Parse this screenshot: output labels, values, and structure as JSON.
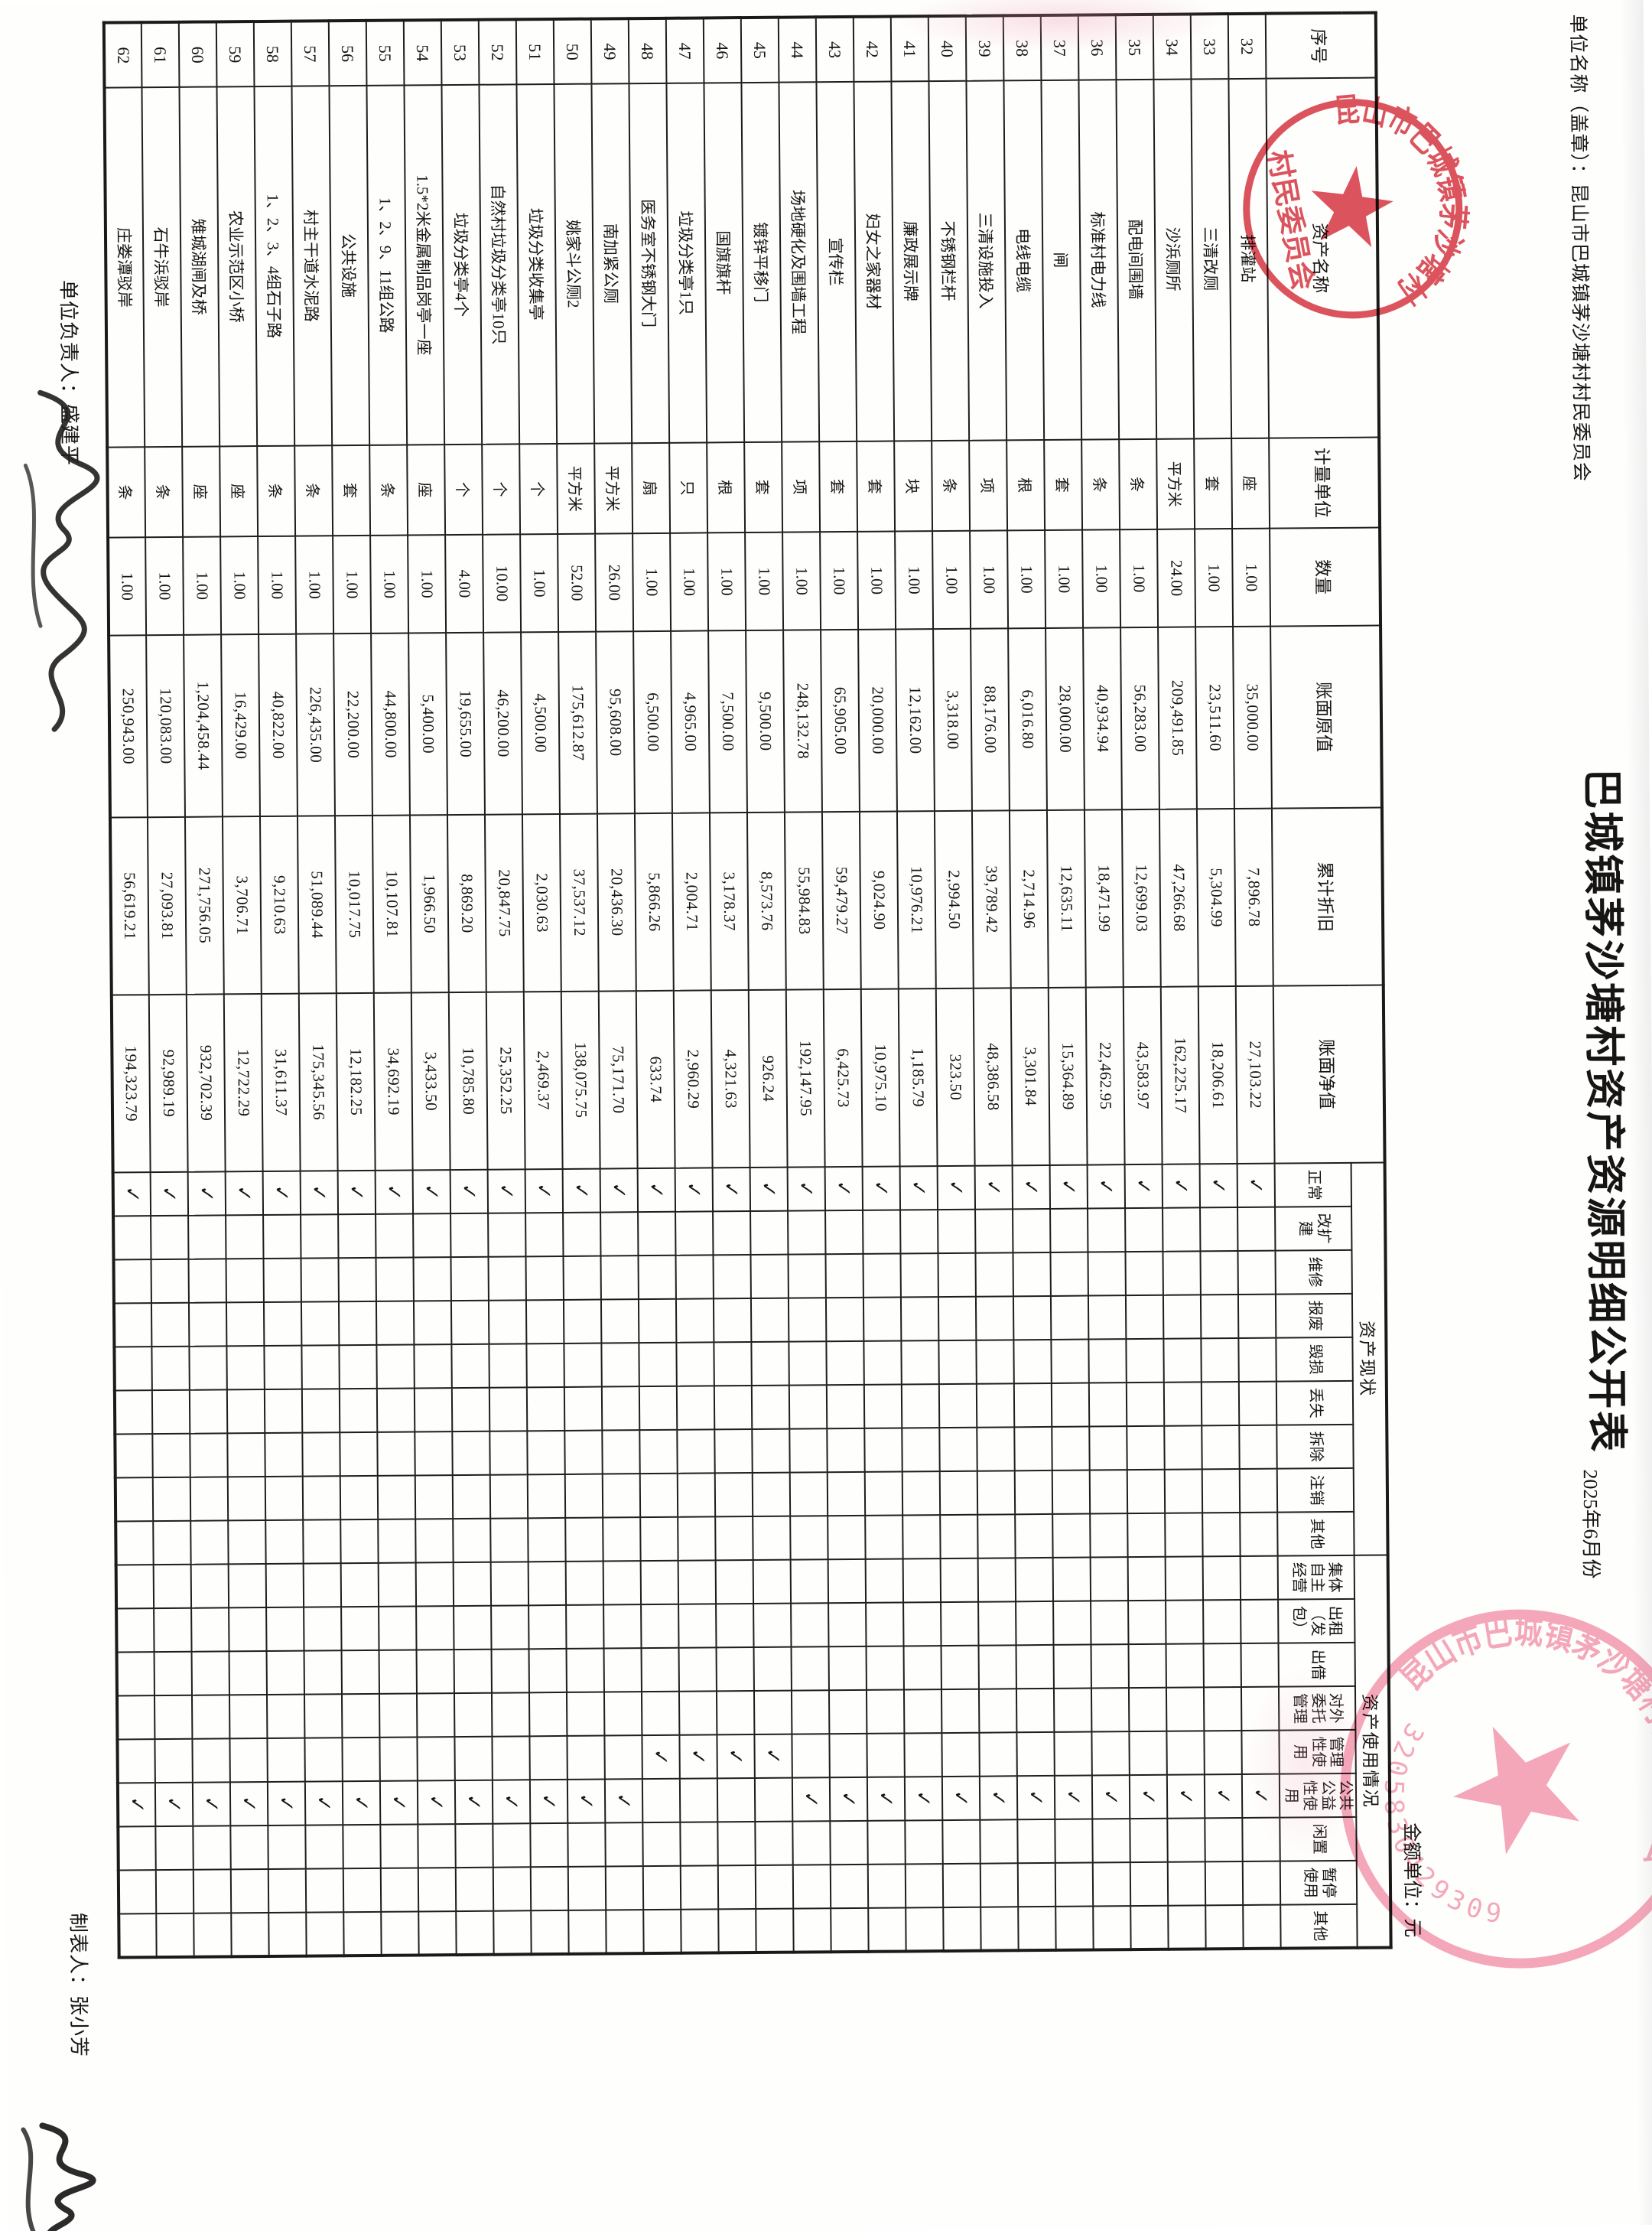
{
  "page": {
    "title": "巴城镇茅沙塘村资产资源明细公开表",
    "unit_label": "单位名称（盖章）：昆山市巴城镇茅沙塘村村民委员会",
    "period": "2025年6月份",
    "amount_unit": "金额单位：元",
    "manager_label": "单位负责人：盛建平",
    "preparer_label": "制表人：张小芳"
  },
  "stamps": {
    "red_stamp_org": "昆山市巴城镇茅沙塘村",
    "red_stamp_center": "村民委员会",
    "pink_stamp_org": "昆山市巴城镇茅沙塘村村民委员会",
    "pink_stamp_code": "3205830429309",
    "red_color": "#d5333f",
    "pink_color": "#ee6d8e"
  },
  "table": {
    "check_glyph": "✓",
    "leading_headers": [
      "序号",
      "资产名称",
      "计量单位",
      "数量",
      "账面原值",
      "累计折旧",
      "账面净值"
    ],
    "groups": [
      {
        "label": "资产现状",
        "children": [
          "正常",
          "改扩建",
          "维修",
          "报废",
          "毁损",
          "丢失",
          "拆除",
          "注销",
          "其他"
        ]
      },
      {
        "label": "资产使用情况",
        "children": [
          "集体自主经营",
          "出租（发包）",
          "出借",
          "对外委托管理",
          "管理性使用",
          "公共公益性使用",
          "闲置",
          "暂停使用",
          "其他"
        ]
      }
    ],
    "rows": [
      {
        "no": "32",
        "name": "排灌站",
        "unit": "座",
        "qty": "1.00",
        "orig": "35,000.00",
        "dep": "7,896.78",
        "net": "27,103.22",
        "status": "正常",
        "usage": "公共公益性使用"
      },
      {
        "no": "33",
        "name": "三清改厕",
        "unit": "套",
        "qty": "1.00",
        "orig": "23,511.60",
        "dep": "5,304.99",
        "net": "18,206.61",
        "status": "正常",
        "usage": "公共公益性使用"
      },
      {
        "no": "34",
        "name": "沙浜厕所",
        "unit": "平方米",
        "qty": "24.00",
        "orig": "209,491.85",
        "dep": "47,266.68",
        "net": "162,225.17",
        "status": "正常",
        "usage": "公共公益性使用"
      },
      {
        "no": "35",
        "name": "配电间围墙",
        "unit": "条",
        "qty": "1.00",
        "orig": "56,283.00",
        "dep": "12,699.03",
        "net": "43,583.97",
        "status": "正常",
        "usage": "公共公益性使用"
      },
      {
        "no": "36",
        "name": "标准村电力线",
        "unit": "条",
        "qty": "1.00",
        "orig": "40,934.94",
        "dep": "18,471.99",
        "net": "22,462.95",
        "status": "正常",
        "usage": "公共公益性使用"
      },
      {
        "no": "37",
        "name": "闸",
        "unit": "套",
        "qty": "1.00",
        "orig": "28,000.00",
        "dep": "12,635.11",
        "net": "15,364.89",
        "status": "正常",
        "usage": "公共公益性使用"
      },
      {
        "no": "38",
        "name": "电线电缆",
        "unit": "根",
        "qty": "1.00",
        "orig": "6,016.80",
        "dep": "2,714.96",
        "net": "3,301.84",
        "status": "正常",
        "usage": "公共公益性使用"
      },
      {
        "no": "39",
        "name": "三清设施投入",
        "unit": "项",
        "qty": "1.00",
        "orig": "88,176.00",
        "dep": "39,789.42",
        "net": "48,386.58",
        "status": "正常",
        "usage": "公共公益性使用"
      },
      {
        "no": "40",
        "name": "不锈钢栏杆",
        "unit": "条",
        "qty": "1.00",
        "orig": "3,318.00",
        "dep": "2,994.50",
        "net": "323.50",
        "status": "正常",
        "usage": "公共公益性使用"
      },
      {
        "no": "41",
        "name": "廉政展示牌",
        "unit": "块",
        "qty": "1.00",
        "orig": "12,162.00",
        "dep": "10,976.21",
        "net": "1,185.79",
        "status": "正常",
        "usage": "公共公益性使用"
      },
      {
        "no": "42",
        "name": "妇女之家器材",
        "unit": "套",
        "qty": "1.00",
        "orig": "20,000.00",
        "dep": "9,024.90",
        "net": "10,975.10",
        "status": "正常",
        "usage": "公共公益性使用"
      },
      {
        "no": "43",
        "name": "宣传栏",
        "unit": "套",
        "qty": "1.00",
        "orig": "65,905.00",
        "dep": "59,479.27",
        "net": "6,425.73",
        "status": "正常",
        "usage": "公共公益性使用"
      },
      {
        "no": "44",
        "name": "场地硬化及围墙工程",
        "unit": "项",
        "qty": "1.00",
        "orig": "248,132.78",
        "dep": "55,984.83",
        "net": "192,147.95",
        "status": "正常",
        "usage": "公共公益性使用"
      },
      {
        "no": "45",
        "name": "镀锌平移门",
        "unit": "套",
        "qty": "1.00",
        "orig": "9,500.00",
        "dep": "8,573.76",
        "net": "926.24",
        "status": "正常",
        "usage": "管理性使用"
      },
      {
        "no": "46",
        "name": "国旗旗杆",
        "unit": "根",
        "qty": "1.00",
        "orig": "7,500.00",
        "dep": "3,178.37",
        "net": "4,321.63",
        "status": "正常",
        "usage": "管理性使用"
      },
      {
        "no": "47",
        "name": "垃圾分类亭1只",
        "unit": "只",
        "qty": "1.00",
        "orig": "4,965.00",
        "dep": "2,004.71",
        "net": "2,960.29",
        "status": "正常",
        "usage": "管理性使用"
      },
      {
        "no": "48",
        "name": "医务室不锈钢大门",
        "unit": "扇",
        "qty": "1.00",
        "orig": "6,500.00",
        "dep": "5,866.26",
        "net": "633.74",
        "status": "正常",
        "usage": "管理性使用"
      },
      {
        "no": "49",
        "name": "南加紧公厕",
        "unit": "平方米",
        "qty": "26.00",
        "orig": "95,608.00",
        "dep": "20,436.30",
        "net": "75,171.70",
        "status": "正常",
        "usage": "公共公益性使用"
      },
      {
        "no": "50",
        "name": "姚家斗公厕2",
        "unit": "平方米",
        "qty": "52.00",
        "orig": "175,612.87",
        "dep": "37,537.12",
        "net": "138,075.75",
        "status": "正常",
        "usage": "公共公益性使用"
      },
      {
        "no": "51",
        "name": "垃圾分类收集亭",
        "unit": "个",
        "qty": "1.00",
        "orig": "4,500.00",
        "dep": "2,030.63",
        "net": "2,469.37",
        "status": "正常",
        "usage": "公共公益性使用"
      },
      {
        "no": "52",
        "name": "自然村垃圾分类亭10只",
        "unit": "个",
        "qty": "10.00",
        "orig": "46,200.00",
        "dep": "20,847.75",
        "net": "25,352.25",
        "status": "正常",
        "usage": "公共公益性使用"
      },
      {
        "no": "53",
        "name": "垃圾分类亭4个",
        "unit": "个",
        "qty": "4.00",
        "orig": "19,655.00",
        "dep": "8,869.20",
        "net": "10,785.80",
        "status": "正常",
        "usage": "公共公益性使用"
      },
      {
        "no": "54",
        "name": "1.5*2米金属制品岗亭一座",
        "unit": "座",
        "qty": "1.00",
        "orig": "5,400.00",
        "dep": "1,966.50",
        "net": "3,433.50",
        "status": "正常",
        "usage": "公共公益性使用"
      },
      {
        "no": "55",
        "name": "1、2、9、11组公路",
        "unit": "条",
        "qty": "1.00",
        "orig": "44,800.00",
        "dep": "10,107.81",
        "net": "34,692.19",
        "status": "正常",
        "usage": "公共公益性使用"
      },
      {
        "no": "56",
        "name": "公共设施",
        "unit": "套",
        "qty": "1.00",
        "orig": "22,200.00",
        "dep": "10,017.75",
        "net": "12,182.25",
        "status": "正常",
        "usage": "公共公益性使用"
      },
      {
        "no": "57",
        "name": "村主干道水泥路",
        "unit": "条",
        "qty": "1.00",
        "orig": "226,435.00",
        "dep": "51,089.44",
        "net": "175,345.56",
        "status": "正常",
        "usage": "公共公益性使用"
      },
      {
        "no": "58",
        "name": "1、2、3、4组石子路",
        "unit": "条",
        "qty": "1.00",
        "orig": "40,822.00",
        "dep": "9,210.63",
        "net": "31,611.37",
        "status": "正常",
        "usage": "公共公益性使用"
      },
      {
        "no": "59",
        "name": "农业示范区小桥",
        "unit": "座",
        "qty": "1.00",
        "orig": "16,429.00",
        "dep": "3,706.71",
        "net": "12,722.29",
        "status": "正常",
        "usage": "公共公益性使用"
      },
      {
        "no": "60",
        "name": "雉城湖闸及桥",
        "unit": "座",
        "qty": "1.00",
        "orig": "1,204,458.44",
        "dep": "271,756.05",
        "net": "932,702.39",
        "status": "正常",
        "usage": "公共公益性使用"
      },
      {
        "no": "61",
        "name": "石牛浜驳岸",
        "unit": "条",
        "qty": "1.00",
        "orig": "120,083.00",
        "dep": "27,093.81",
        "net": "92,989.19",
        "status": "正常",
        "usage": "公共公益性使用"
      },
      {
        "no": "62",
        "name": "庄娄潭驳岸",
        "unit": "条",
        "qty": "1.00",
        "orig": "250,943.00",
        "dep": "56,619.21",
        "net": "194,323.79",
        "status": "正常",
        "usage": "公共公益性使用"
      }
    ]
  }
}
